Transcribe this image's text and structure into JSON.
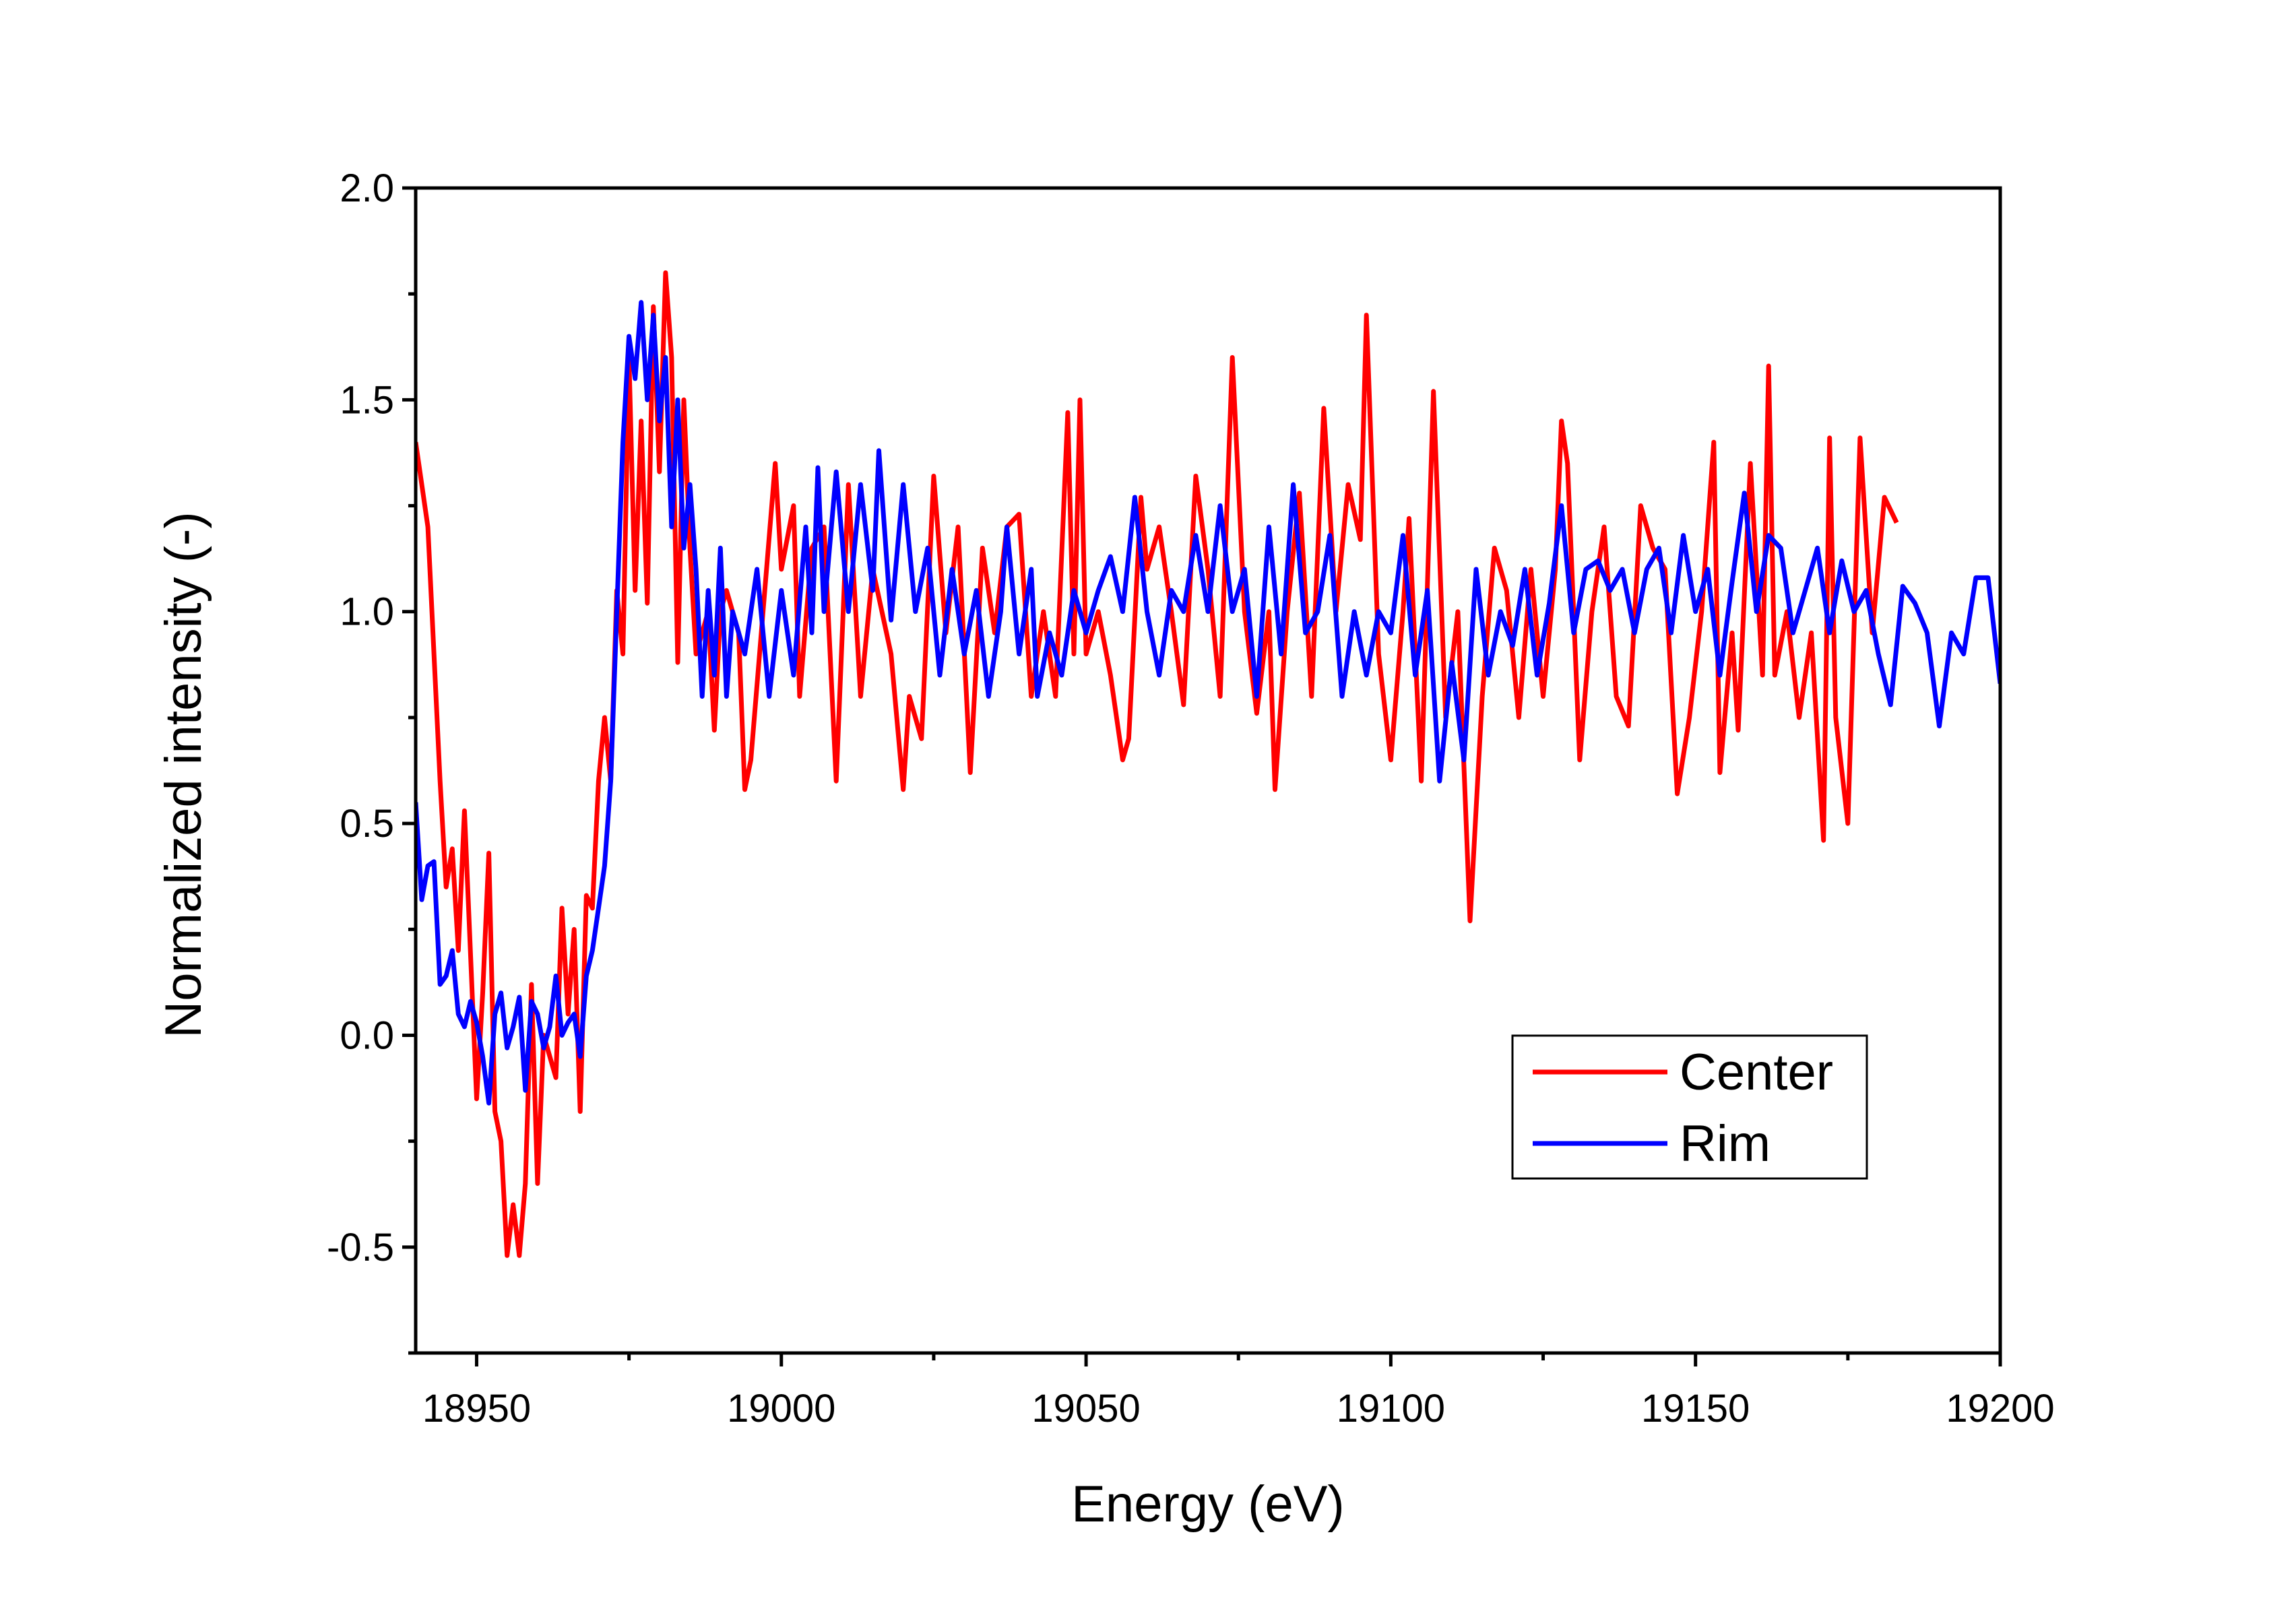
{
  "chart_data": {
    "type": "line",
    "title": "",
    "xlabel": "Energy (eV)",
    "ylabel": "Normalized intensity (-)",
    "xlim": [
      18940,
      19200
    ],
    "ylim": [
      -0.75,
      2.0
    ],
    "xticks": [
      18950,
      19000,
      19050,
      19100,
      19150,
      19200
    ],
    "xtick_labels": [
      "18950",
      "19000",
      "19050",
      "19100",
      "19150",
      "19200"
    ],
    "yticks": [
      -0.5,
      0.0,
      0.5,
      1.0,
      1.5,
      2.0
    ],
    "ytick_labels": [
      "-0.5",
      "0.0",
      "0.5",
      "1.0",
      "1.5",
      "2.0"
    ],
    "grid": false,
    "legend_position": "bottom-right",
    "series": [
      {
        "name": "Center",
        "color": "#ff0000",
        "x": [
          18940,
          18942,
          18944,
          18945,
          18946,
          18947,
          18948,
          18950,
          18951,
          18952,
          18953,
          18954,
          18955,
          18956,
          18957,
          18958,
          18959,
          18960,
          18961,
          18963,
          18964,
          18965,
          18966,
          18967,
          18968,
          18969,
          18970,
          18971,
          18972,
          18973,
          18974,
          18975,
          18976,
          18977,
          18978,
          18979,
          18980,
          18981,
          18982,
          18983,
          18984,
          18985,
          18986,
          18988,
          18989,
          18990,
          18991,
          18993,
          18994,
          18995,
          18997,
          18999,
          19000,
          19002,
          19003,
          19005,
          19007,
          19009,
          19011,
          19013,
          19015,
          19018,
          19020,
          19021,
          19023,
          19025,
          19027,
          19029,
          19031,
          19033,
          19035,
          19037,
          19039,
          19041,
          19043,
          19045,
          19047,
          19048,
          19049,
          19050,
          19052,
          19054,
          19056,
          19057,
          19059,
          19060,
          19062,
          19064,
          19066,
          19068,
          19070,
          19072,
          19073,
          19074,
          19076,
          19078,
          19080,
          19081,
          19083,
          19085,
          19087,
          19089,
          19091,
          19093,
          19095,
          19096,
          19098,
          19100,
          19102,
          19103,
          19105,
          19107,
          19109,
          19111,
          19113,
          19115,
          19117,
          19119,
          19121,
          19123,
          19125,
          19127,
          19128,
          19129,
          19131,
          19133,
          19135,
          19137,
          19139,
          19141,
          19143,
          19145,
          19147,
          19149,
          19151,
          19153,
          19154,
          19156,
          19157,
          19159,
          19161,
          19162,
          19163,
          19165,
          19167,
          19169,
          19171,
          19172,
          19173,
          19175,
          19177,
          19179,
          19181,
          19183
        ],
        "y": [
          1.4,
          1.2,
          0.6,
          0.35,
          0.44,
          0.2,
          0.53,
          -0.15,
          0.1,
          0.43,
          -0.18,
          -0.25,
          -0.52,
          -0.4,
          -0.52,
          -0.35,
          0.12,
          -0.35,
          0.0,
          -0.1,
          0.3,
          0.05,
          0.25,
          -0.18,
          0.33,
          0.3,
          0.6,
          0.75,
          0.6,
          1.05,
          0.9,
          1.6,
          1.05,
          1.45,
          1.02,
          1.72,
          1.33,
          1.8,
          1.6,
          0.88,
          1.5,
          1.15,
          0.9,
          1.0,
          0.72,
          1.0,
          1.05,
          0.95,
          0.58,
          0.65,
          1.0,
          1.35,
          1.1,
          1.25,
          0.8,
          1.15,
          1.2,
          0.6,
          1.3,
          0.8,
          1.1,
          0.9,
          0.58,
          0.8,
          0.7,
          1.32,
          0.95,
          1.2,
          0.62,
          1.15,
          0.95,
          1.2,
          1.23,
          0.8,
          1.0,
          0.8,
          1.47,
          0.9,
          1.5,
          0.9,
          1.0,
          0.85,
          0.65,
          0.7,
          1.27,
          1.1,
          1.2,
          1.0,
          0.78,
          1.32,
          1.1,
          0.8,
          1.2,
          1.6,
          1.0,
          0.76,
          1.0,
          0.58,
          1.0,
          1.28,
          0.8,
          1.48,
          1.0,
          1.3,
          1.17,
          1.7,
          0.9,
          0.65,
          1.0,
          1.22,
          0.6,
          1.52,
          0.75,
          1.0,
          0.27,
          0.8,
          1.15,
          1.05,
          0.75,
          1.1,
          0.8,
          1.1,
          1.45,
          1.35,
          0.65,
          1.0,
          1.2,
          0.8,
          0.73,
          1.25,
          1.15,
          1.1,
          0.57,
          0.75,
          1.0,
          1.4,
          0.62,
          0.95,
          0.72,
          1.35,
          0.85,
          1.58,
          0.85,
          1.0,
          0.75,
          0.95,
          0.46,
          1.41,
          0.75,
          0.5,
          1.41,
          0.95,
          1.27,
          1.21
        ]
      },
      {
        "name": "Rim",
        "color": "#0000ff",
        "x": [
          18940,
          18941,
          18942,
          18943,
          18944,
          18945,
          18946,
          18947,
          18948,
          18949,
          18950,
          18951,
          18952,
          18953,
          18954,
          18955,
          18956,
          18957,
          18958,
          18959,
          18960,
          18961,
          18962,
          18963,
          18964,
          18965,
          18966,
          18967,
          18968,
          18969,
          18970,
          18971,
          18972,
          18973,
          18974,
          18975,
          18976,
          18977,
          18978,
          18979,
          18980,
          18981,
          18982,
          18983,
          18984,
          18985,
          18986,
          18987,
          18988,
          18989,
          18990,
          18991,
          18992,
          18994,
          18996,
          18998,
          19000,
          19002,
          19004,
          19005,
          19006,
          19007,
          19009,
          19011,
          19013,
          19015,
          19016,
          19018,
          19020,
          19022,
          19024,
          19026,
          19028,
          19030,
          19032,
          19034,
          19036,
          19037,
          19039,
          19041,
          19042,
          19044,
          19046,
          19048,
          19050,
          19052,
          19054,
          19056,
          19058,
          19060,
          19062,
          19064,
          19066,
          19068,
          19070,
          19072,
          19074,
          19076,
          19078,
          19080,
          19082,
          19084,
          19086,
          19088,
          19090,
          19092,
          19094,
          19096,
          19098,
          19100,
          19102,
          19104,
          19106,
          19108,
          19110,
          19112,
          19114,
          19116,
          19118,
          19120,
          19122,
          19124,
          19126,
          19128,
          19130,
          19132,
          19134,
          19136,
          19138,
          19140,
          19142,
          19144,
          19146,
          19148,
          19150,
          19152,
          19154,
          19156,
          19158,
          19160,
          19162,
          19164,
          19166,
          19168,
          19170,
          19172,
          19174,
          19176,
          19178,
          19180,
          19182,
          19184,
          19186,
          19188,
          19190,
          19192,
          19194,
          19196,
          19198,
          19200
        ],
        "y": [
          0.55,
          0.32,
          0.4,
          0.41,
          0.12,
          0.14,
          0.2,
          0.05,
          0.02,
          0.08,
          0.03,
          -0.05,
          -0.16,
          0.05,
          0.1,
          -0.03,
          0.02,
          0.09,
          -0.13,
          0.08,
          0.05,
          -0.03,
          0.02,
          0.14,
          0.0,
          0.03,
          0.05,
          -0.05,
          0.14,
          0.2,
          0.3,
          0.4,
          0.6,
          1.0,
          1.4,
          1.65,
          1.55,
          1.73,
          1.5,
          1.7,
          1.45,
          1.6,
          1.2,
          1.5,
          1.15,
          1.3,
          1.1,
          0.8,
          1.05,
          0.85,
          1.15,
          0.8,
          1.0,
          0.9,
          1.1,
          0.8,
          1.05,
          0.85,
          1.2,
          0.95,
          1.34,
          1.0,
          1.33,
          1.0,
          1.3,
          1.05,
          1.38,
          0.98,
          1.3,
          1.0,
          1.15,
          0.85,
          1.1,
          0.9,
          1.05,
          0.8,
          1.0,
          1.2,
          0.9,
          1.1,
          0.8,
          0.95,
          0.85,
          1.05,
          0.95,
          1.05,
          1.13,
          1.0,
          1.27,
          1.0,
          0.85,
          1.05,
          1.0,
          1.18,
          1.0,
          1.25,
          1.0,
          1.1,
          0.8,
          1.2,
          0.9,
          1.3,
          0.95,
          1.0,
          1.18,
          0.8,
          1.0,
          0.85,
          1.0,
          0.95,
          1.18,
          0.85,
          1.05,
          0.6,
          0.88,
          0.65,
          1.1,
          0.85,
          1.0,
          0.92,
          1.1,
          0.85,
          1.02,
          1.25,
          0.95,
          1.1,
          1.12,
          1.05,
          1.1,
          0.95,
          1.1,
          1.15,
          0.95,
          1.18,
          1.0,
          1.1,
          0.85,
          1.07,
          1.28,
          1.0,
          1.18,
          1.15,
          0.95,
          1.05,
          1.15,
          0.95,
          1.12,
          1.0,
          1.05,
          0.9,
          0.78,
          1.06,
          1.02,
          0.95,
          0.73,
          0.95,
          0.9,
          1.08,
          1.08,
          0.83
        ]
      }
    ]
  }
}
